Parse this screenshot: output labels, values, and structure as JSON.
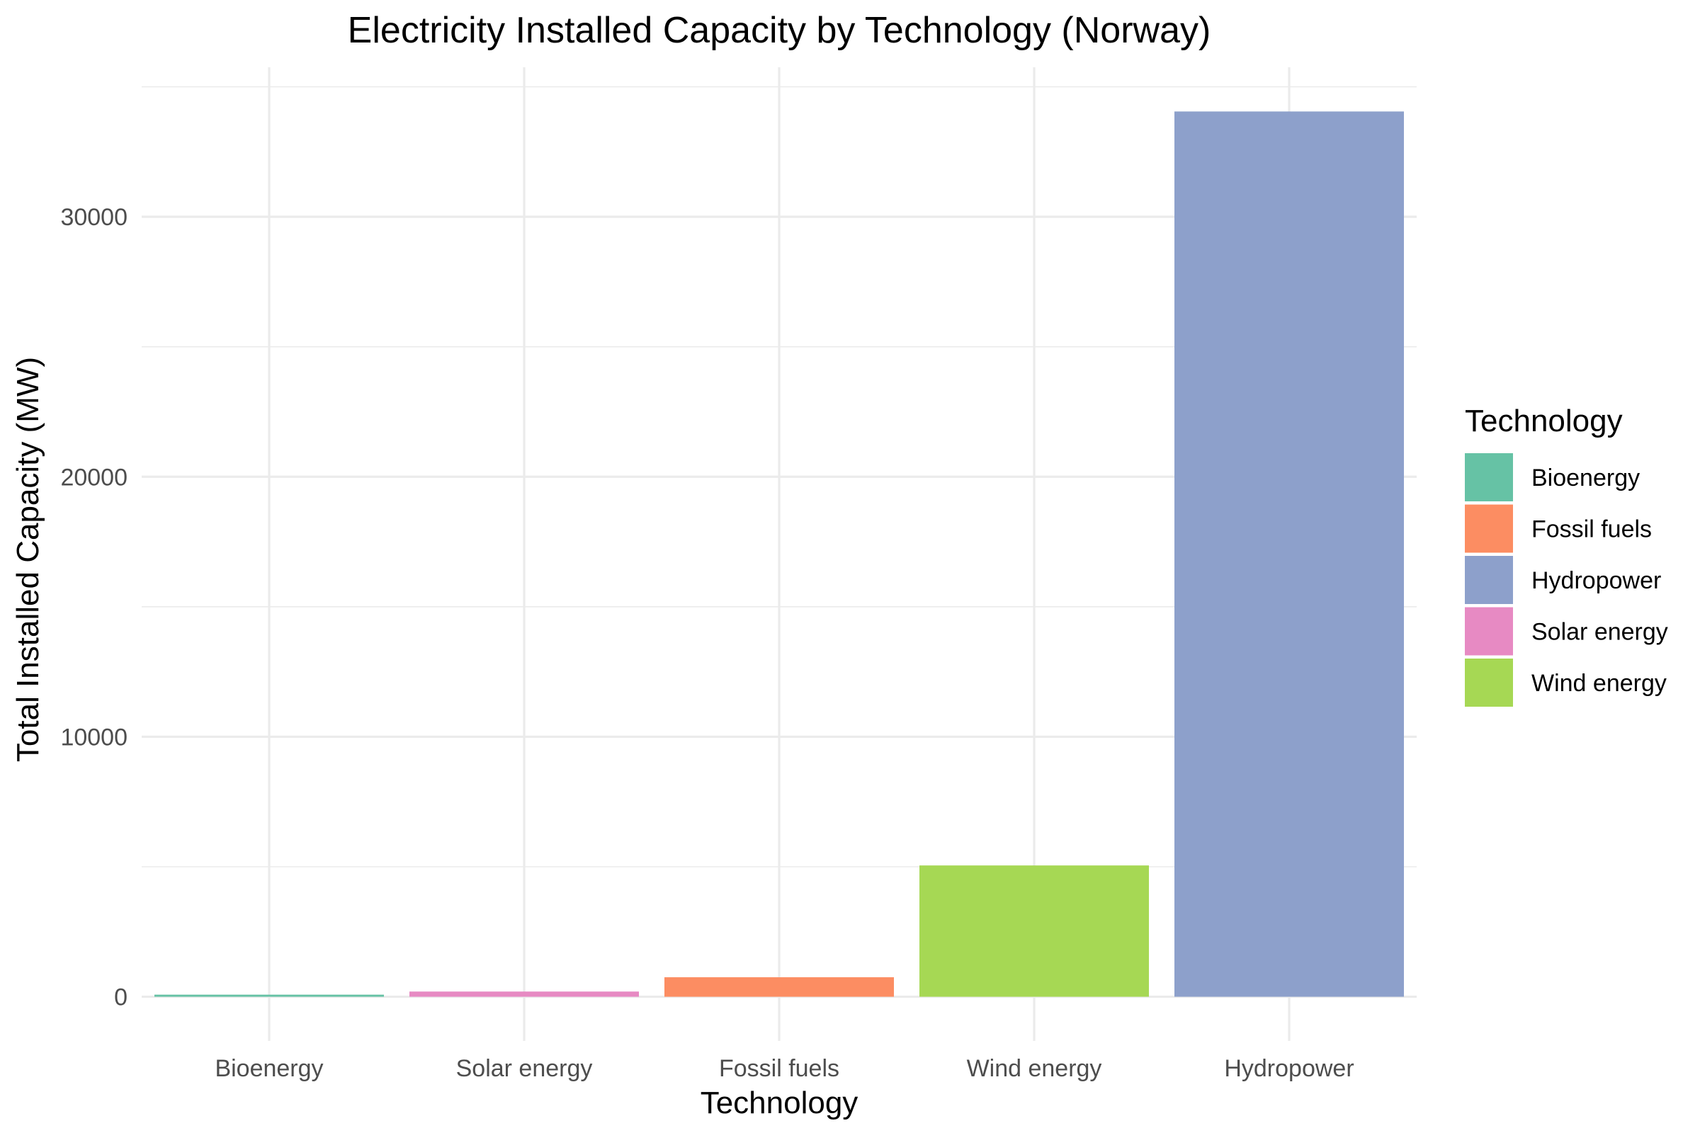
{
  "chart_data": {
    "type": "bar",
    "title": "Electricity Installed Capacity by Technology (Norway)",
    "xlabel": "Technology",
    "ylabel": "Total Installed Capacity (MW)",
    "categories": [
      "Bioenergy",
      "Solar energy",
      "Fossil fuels",
      "Wind energy",
      "Hydropower"
    ],
    "values": [
      80,
      200,
      750,
      5050,
      34050
    ],
    "colors": {
      "Bioenergy": "#66C2A5",
      "Fossil fuels": "#FC8D62",
      "Hydropower": "#8DA0CB",
      "Solar energy": "#E78AC3",
      "Wind energy": "#A6D854"
    },
    "yticks": [
      0,
      10000,
      20000,
      30000
    ],
    "yminor": [
      5000,
      15000,
      25000,
      35000
    ],
    "ylim": [
      -1700,
      35750
    ],
    "grid": true,
    "legend": {
      "title": "Technology",
      "position": "right",
      "entries": [
        "Bioenergy",
        "Fossil fuels",
        "Hydropower",
        "Solar energy",
        "Wind energy"
      ]
    }
  }
}
